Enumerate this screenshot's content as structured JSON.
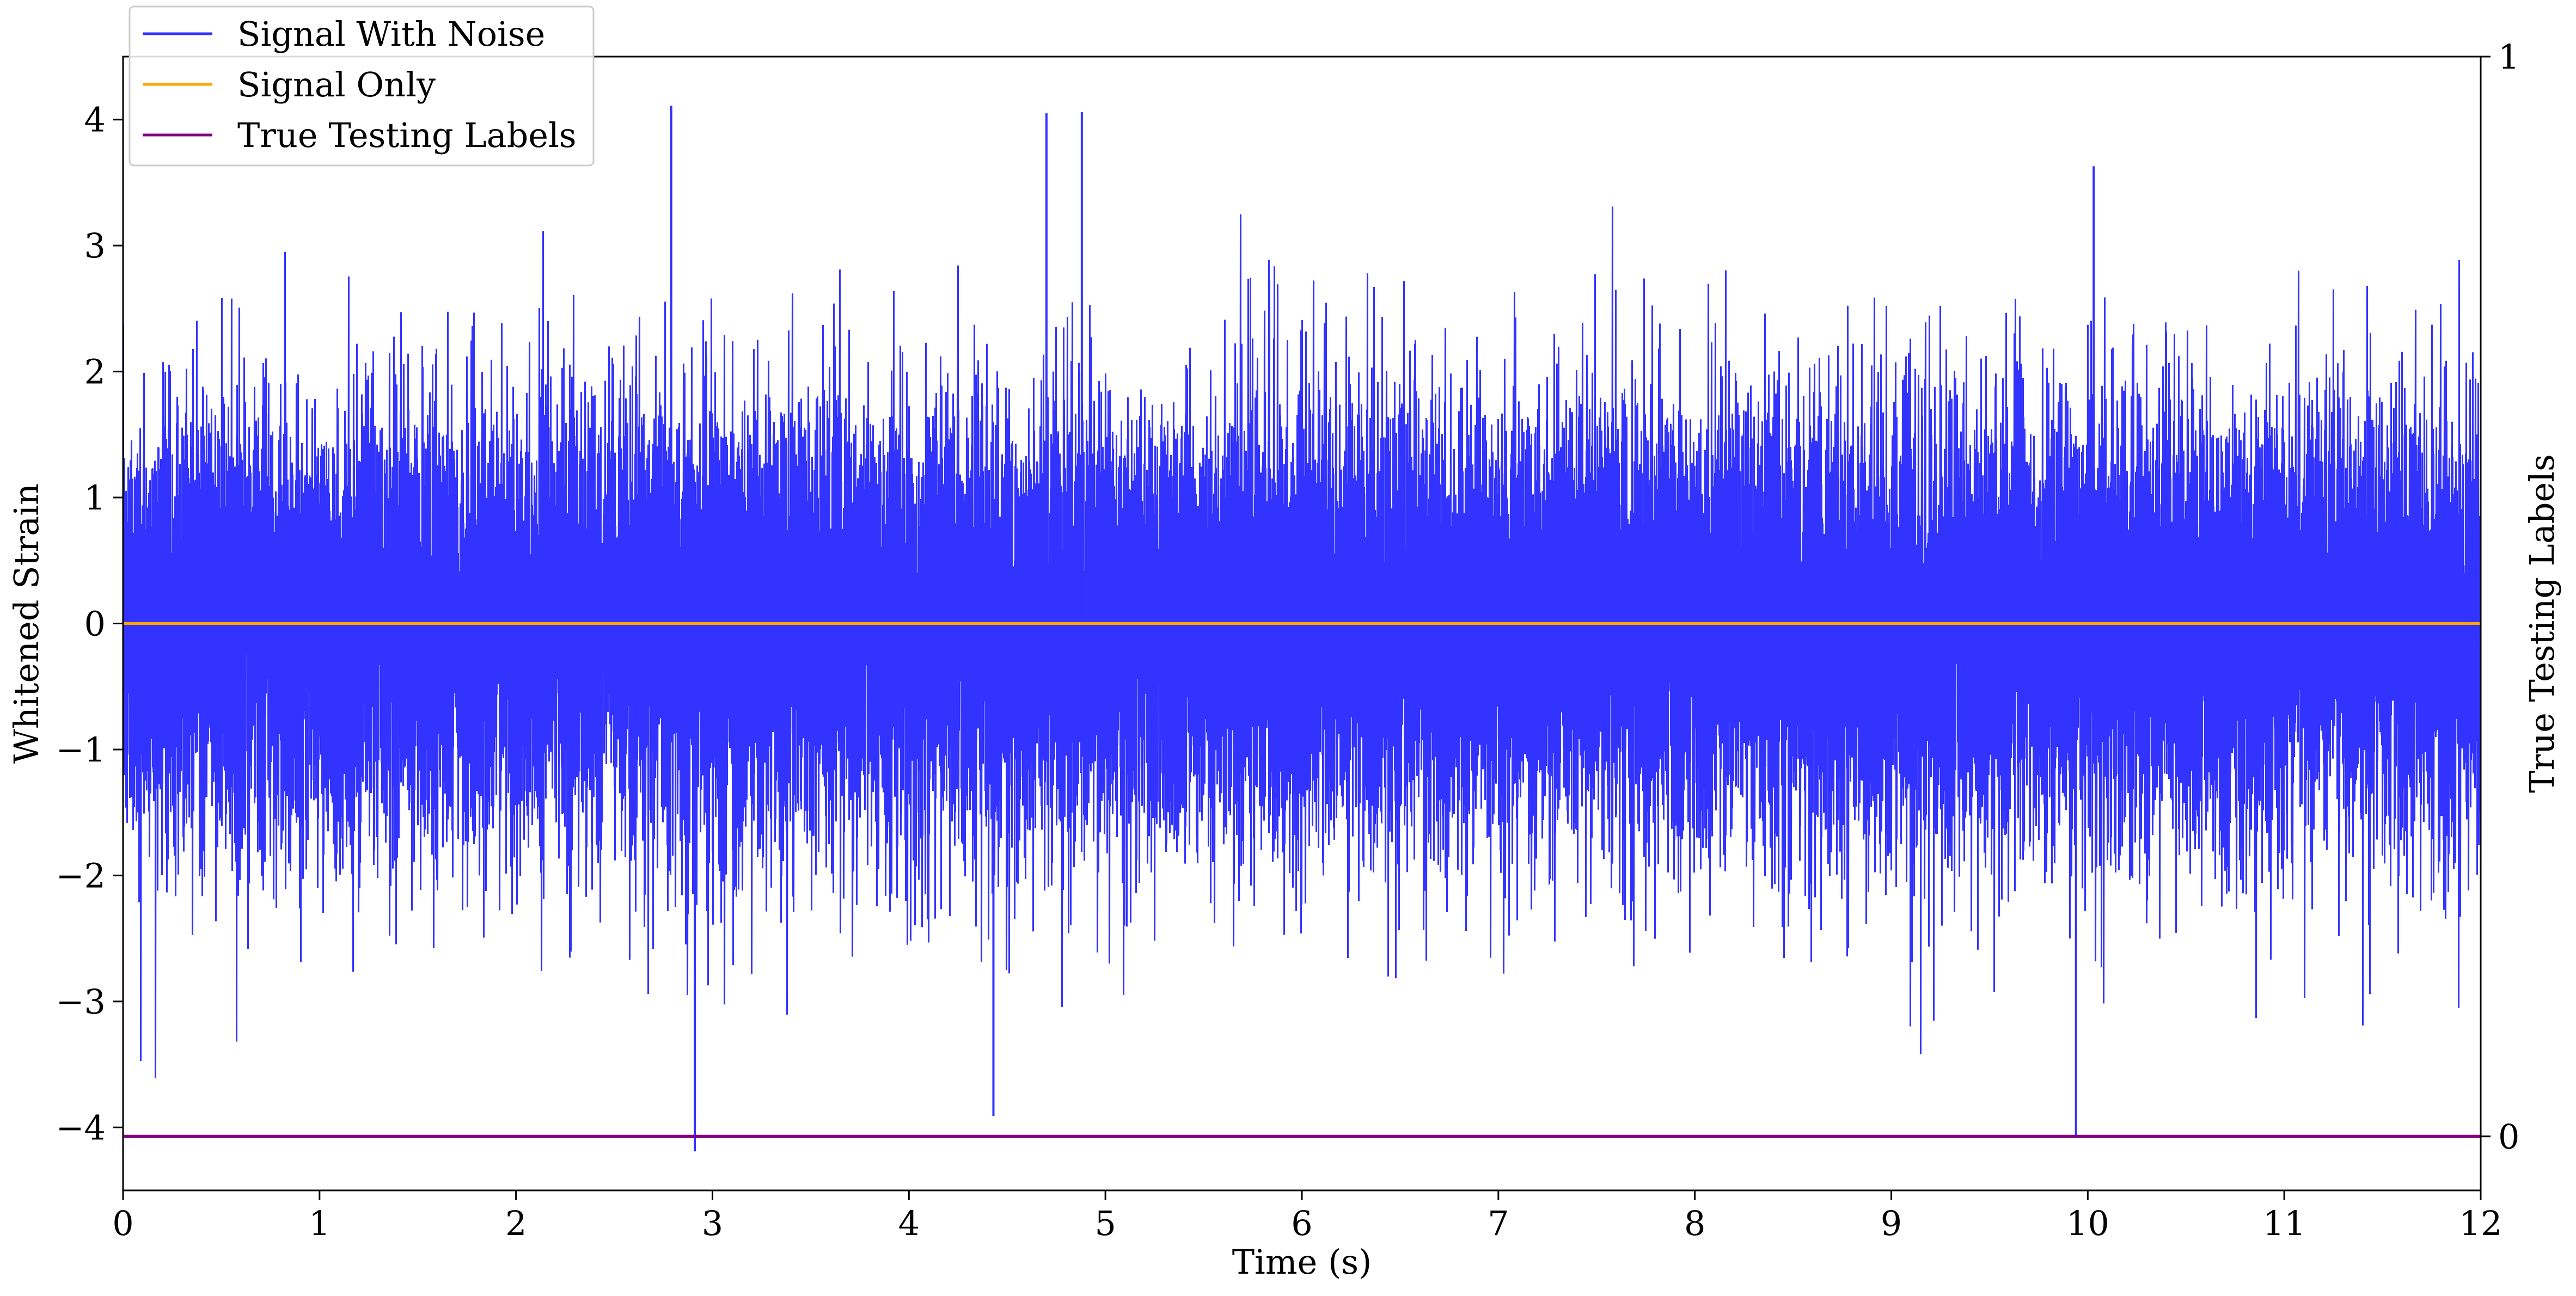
{
  "chart_data": {
    "type": "line",
    "xlabel": "Time (s)",
    "ylabel": "Whitened Strain",
    "ylabel_right": "True Testing Labels",
    "xlim": [
      0,
      12
    ],
    "ylim": [
      -4.5,
      4.5
    ],
    "ylim_right": [
      -0.05,
      1.0
    ],
    "x_ticks": [
      "0",
      "1",
      "2",
      "3",
      "4",
      "5",
      "6",
      "7",
      "8",
      "9",
      "10",
      "11",
      "12"
    ],
    "y_ticks": [
      "−4",
      "−3",
      "−2",
      "−1",
      "0",
      "1",
      "2",
      "3",
      "4"
    ],
    "y_right_ticks": [
      "0",
      "1"
    ],
    "grid": false,
    "legend_position": "top-left",
    "sample_rate_hz": 2048,
    "series": [
      {
        "name": "Signal With Noise",
        "color": "#3333ff",
        "description_values": "dense whitened noise, approx. standard normal, peaks up to ~4.1 and down to ~-4.2",
        "notable_extremes": [
          {
            "x": 2.79,
            "y": 4.11
          },
          {
            "x": 4.7,
            "y": 4.05
          },
          {
            "x": 4.88,
            "y": 4.06
          },
          {
            "x": 10.03,
            "y": 3.63
          },
          {
            "x": 2.91,
            "y": -4.19
          },
          {
            "x": 9.94,
            "y": -4.07
          },
          {
            "x": 4.43,
            "y": -3.91
          }
        ]
      },
      {
        "name": "Signal Only",
        "color": "#ffa500",
        "x": [
          0,
          12
        ],
        "values": [
          0,
          0
        ]
      },
      {
        "name": "True Testing Labels",
        "color": "#800080",
        "axis": "right",
        "x": [
          0,
          12
        ],
        "values": [
          0,
          0
        ]
      }
    ]
  }
}
